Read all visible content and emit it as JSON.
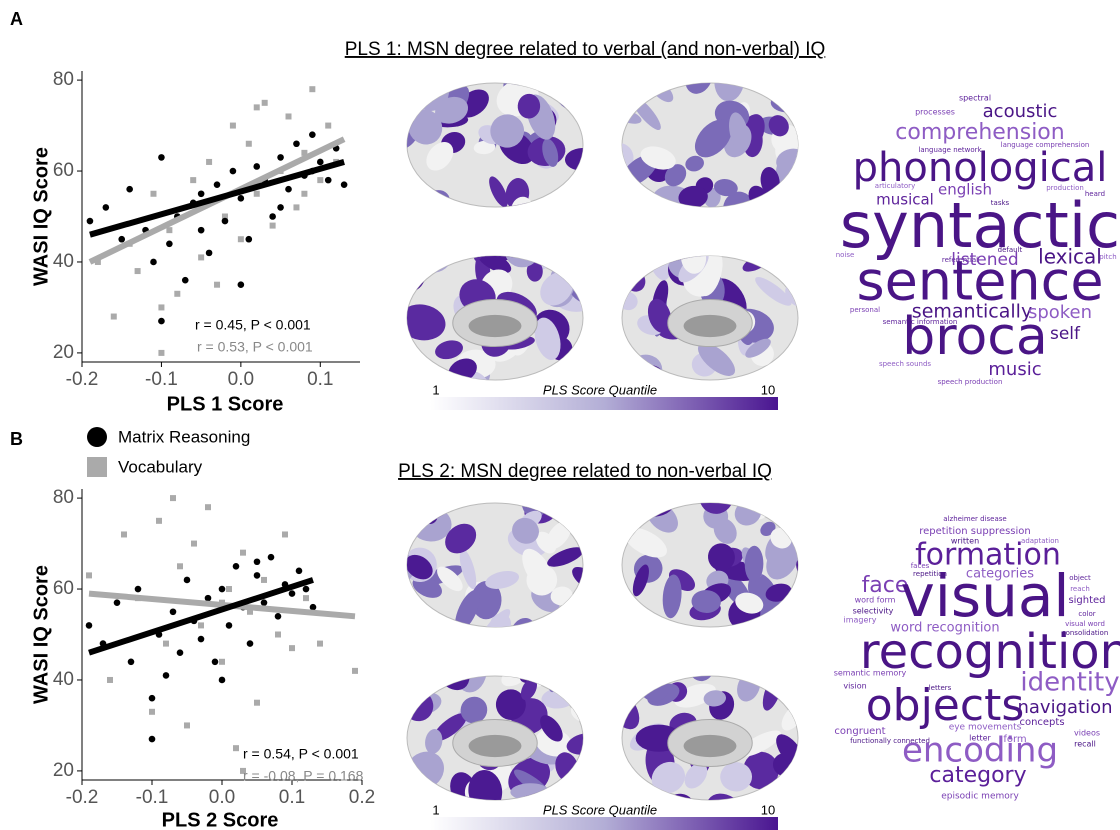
{
  "panel_labels": [
    "A",
    "B"
  ],
  "panel_titles": [
    "PLS 1: MSN degree related to verbal (and non-verbal) IQ",
    "PLS 2: MSN degree related to non-verbal IQ"
  ],
  "colorbars": [
    {
      "min_label": "1",
      "title": "PLS Score Quantile",
      "max_label": "10"
    },
    {
      "min_label": "1",
      "title": "PLS Score Quantile",
      "max_label": "10"
    }
  ],
  "chart_data": [
    {
      "type": "scatter",
      "xlabel": "PLS 1 Score",
      "ylabel": "WASI IQ Score",
      "xlim": [
        -0.2,
        0.15
      ],
      "ylim": [
        18,
        82
      ],
      "xticks": [
        -0.2,
        -0.1,
        {
          "value": 0,
          "label": "0.0"
        },
        0.1
      ],
      "yticks": [
        20,
        40,
        60,
        80
      ],
      "annotations": [
        "r = 0.45, P < 0.001",
        "r = 0.53, P < 0.001"
      ],
      "series": [
        {
          "name": "Matrix Reasoning",
          "color": "#000000",
          "marker": "circle",
          "x": [
            -0.19,
            -0.17,
            -0.15,
            -0.14,
            -0.12,
            -0.11,
            -0.1,
            -0.09,
            -0.08,
            -0.07,
            -0.06,
            -0.05,
            -0.04,
            -0.03,
            -0.02,
            -0.01,
            0.0,
            0.01,
            0.02,
            0.03,
            0.04,
            0.05,
            0.06,
            0.07,
            0.08,
            0.09,
            0.1,
            0.11,
            0.12,
            0.13,
            -0.1,
            -0.05,
            0.0,
            0.05,
            0.09
          ],
          "values": [
            49,
            52,
            45,
            56,
            47,
            40,
            27,
            44,
            50,
            36,
            53,
            55,
            42,
            57,
            49,
            60,
            54,
            45,
            61,
            58,
            50,
            63,
            56,
            66,
            59,
            60,
            62,
            58,
            65,
            57,
            63,
            47,
            35,
            52,
            68
          ],
          "fit": {
            "x": [
              -0.19,
              0.13
            ],
            "y": [
              46,
              62
            ]
          }
        },
        {
          "name": "Vocabulary",
          "color": "#aaaaaa",
          "marker": "square",
          "x": [
            -0.18,
            -0.16,
            -0.14,
            -0.13,
            -0.11,
            -0.1,
            -0.09,
            -0.08,
            -0.06,
            -0.05,
            -0.04,
            -0.02,
            -0.01,
            0.0,
            0.01,
            0.02,
            0.03,
            0.04,
            0.05,
            0.06,
            0.07,
            0.08,
            0.09,
            0.1,
            0.11,
            0.12,
            -0.1,
            -0.03,
            0.02,
            0.08
          ],
          "values": [
            40,
            28,
            44,
            38,
            55,
            20,
            47,
            33,
            58,
            41,
            62,
            50,
            70,
            45,
            66,
            55,
            75,
            48,
            60,
            72,
            52,
            64,
            78,
            58,
            70,
            62,
            30,
            35,
            74,
            55
          ],
          "fit": {
            "x": [
              -0.19,
              0.13
            ],
            "y": [
              40,
              67
            ]
          }
        }
      ]
    },
    {
      "type": "scatter",
      "xlabel": "PLS 2 Score",
      "ylabel": "WASI IQ Score",
      "xlim": [
        -0.2,
        0.2
      ],
      "ylim": [
        18,
        82
      ],
      "xticks": [
        -0.2,
        -0.1,
        {
          "value": 0,
          "label": "0.0"
        },
        0.1,
        0.2
      ],
      "yticks": [
        20,
        40,
        60,
        80
      ],
      "annotations": [
        "r = 0.54, P < 0.001",
        "r = -0.08, P = 0.168"
      ],
      "series": [
        {
          "color": "#000000",
          "marker": "circle",
          "x": [
            -0.19,
            -0.17,
            -0.15,
            -0.13,
            -0.12,
            -0.1,
            -0.09,
            -0.08,
            -0.07,
            -0.06,
            -0.05,
            -0.04,
            -0.03,
            -0.02,
            -0.01,
            0.0,
            0.01,
            0.02,
            0.03,
            0.04,
            0.05,
            0.06,
            0.07,
            0.08,
            0.09,
            0.1,
            0.11,
            0.12,
            0.13,
            -0.1,
            0.0,
            0.05
          ],
          "values": [
            52,
            48,
            57,
            44,
            60,
            27,
            50,
            41,
            55,
            46,
            62,
            53,
            49,
            58,
            44,
            60,
            52,
            65,
            56,
            48,
            63,
            57,
            67,
            54,
            61,
            59,
            64,
            60,
            56,
            36,
            40,
            66
          ],
          "fit": {
            "x": [
              -0.19,
              0.13
            ],
            "y": [
              46,
              62
            ]
          }
        },
        {
          "color": "#aaaaaa",
          "marker": "square",
          "x": [
            -0.19,
            -0.16,
            -0.14,
            -0.12,
            -0.1,
            -0.09,
            -0.08,
            -0.06,
            -0.05,
            -0.04,
            -0.03,
            -0.02,
            0.0,
            0.01,
            0.02,
            0.03,
            0.04,
            0.05,
            0.06,
            0.08,
            0.09,
            0.1,
            0.12,
            0.14,
            0.19,
            -0.07,
            0.0,
            0.03
          ],
          "values": [
            63,
            40,
            72,
            58,
            33,
            75,
            48,
            65,
            30,
            70,
            52,
            78,
            44,
            60,
            25,
            68,
            55,
            35,
            62,
            50,
            72,
            47,
            58,
            48,
            42,
            80,
            57,
            20
          ],
          "fit": {
            "x": [
              -0.19,
              0.19
            ],
            "y": [
              59,
              54
            ]
          }
        }
      ]
    }
  ],
  "word_clouds": [
    {
      "words": [
        "spectral",
        "processes",
        "acoustic",
        "comprehension",
        "language network",
        "language comprehension",
        "phonological",
        "articulatory",
        "musical",
        "english",
        "tasks",
        "production",
        "heard",
        "syntactic",
        "default",
        "noise",
        "referential",
        "listened",
        "lexical",
        "pitch",
        "sentence",
        "personal",
        "semantically",
        "spoken",
        "semantic information",
        "broca",
        "self",
        "speech sounds",
        "music",
        "speech production"
      ]
    },
    {
      "words": [
        "alzheimer disease",
        "repetition suppression",
        "written",
        "adaptation",
        "formation",
        "faces",
        "repetition",
        "categories",
        "object",
        "face",
        "visual",
        "reach",
        "sighted",
        "word form",
        "selectivity",
        "imagery",
        "color",
        "visual word",
        "consolidation",
        "word recognition",
        "recognition",
        "semantic memory",
        "letters",
        "identity",
        "vision",
        "objects",
        "navigation",
        "eye movements",
        "concepts",
        "congruent",
        "functionally connected",
        "form",
        "letter",
        "videos",
        "recall",
        "encoding",
        "category",
        "episodic memory"
      ]
    }
  ]
}
